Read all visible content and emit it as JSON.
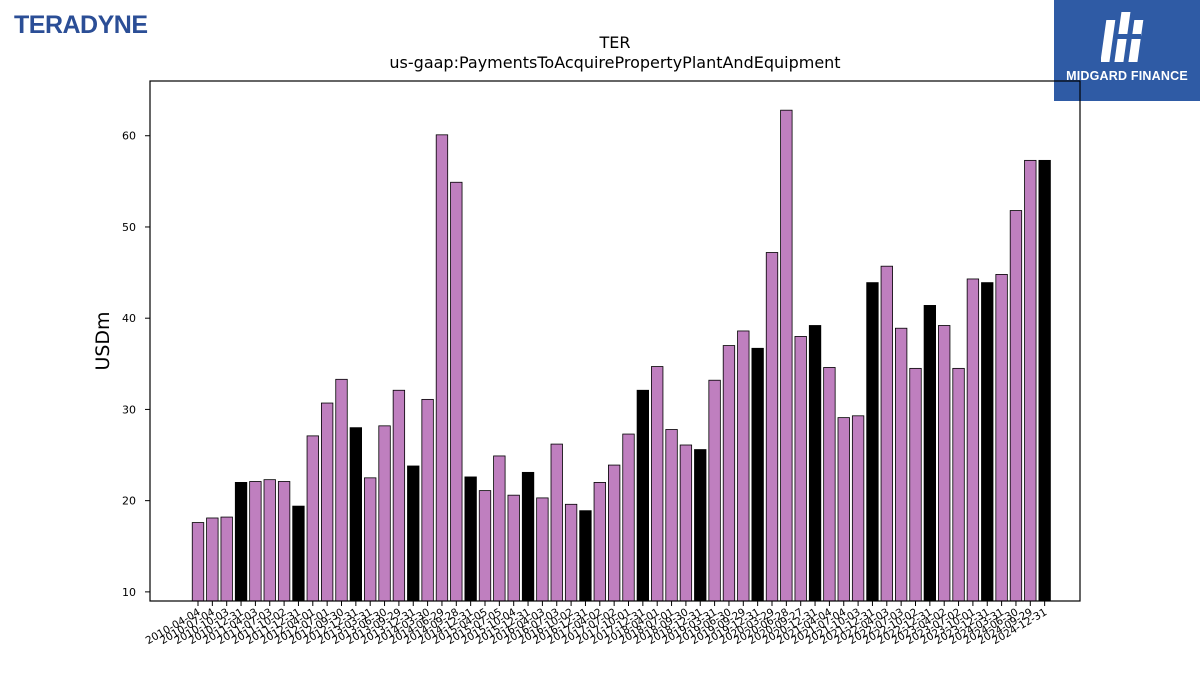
{
  "branding": {
    "left_logo": "TERADYNE",
    "right_logo_text": "MIDGARD FINANCE",
    "right_logo_bg": "#2f5ba5",
    "left_logo_color": "#2b4e96"
  },
  "chart_data": {
    "type": "bar",
    "title": "TER",
    "subtitle": "us-gaap:PaymentsToAcquirePropertyPlantAndEquipment",
    "xlabel": "",
    "ylabel": "USDm",
    "ylim": [
      9,
      66
    ],
    "yticks": [
      10,
      20,
      30,
      40,
      50,
      60
    ],
    "grid": false,
    "colors": {
      "quarter": "#bf7fbf",
      "year_end": "#000000",
      "edge": "#000000"
    },
    "categories": [
      "2010-04-04",
      "2010-07-04",
      "2010-10-03",
      "2010-12-31",
      "2011-04-03",
      "2011-07-03",
      "2011-10-02",
      "2011-12-31",
      "2012-04-01",
      "2012-07-01",
      "2012-09-30",
      "2012-12-31",
      "2013-03-31",
      "2013-06-30",
      "2013-09-29",
      "2013-12-31",
      "2014-03-30",
      "2014-06-29",
      "2014-09-28",
      "2014-12-31",
      "2015-04-05",
      "2015-07-05",
      "2015-10-04",
      "2015-12-31",
      "2016-04-03",
      "2016-07-03",
      "2016-10-02",
      "2016-12-31",
      "2017-04-02",
      "2017-07-02",
      "2017-10-01",
      "2017-12-31",
      "2018-04-01",
      "2018-07-01",
      "2018-09-30",
      "2018-12-31",
      "2019-03-31",
      "2019-06-30",
      "2019-09-29",
      "2019-12-31",
      "2020-03-29",
      "2020-06-28",
      "2020-09-27",
      "2020-12-31",
      "2021-04-04",
      "2021-07-04",
      "2021-10-03",
      "2021-12-31",
      "2022-04-03",
      "2022-07-03",
      "2022-10-02",
      "2022-12-31",
      "2023-04-02",
      "2023-07-02",
      "2023-10-01",
      "2023-12-31",
      "2024-03-31",
      "2024-06-30",
      "2024-09-29",
      "2024-12-31"
    ],
    "values": [
      17.6,
      18.1,
      18.2,
      22.0,
      22.1,
      22.3,
      22.1,
      19.4,
      27.1,
      30.7,
      33.3,
      28.0,
      22.5,
      28.2,
      32.1,
      23.8,
      31.1,
      60.1,
      54.9,
      22.6,
      21.1,
      24.9,
      20.6,
      23.1,
      20.3,
      26.2,
      19.6,
      18.9,
      22.0,
      23.9,
      27.3,
      32.1,
      34.7,
      27.8,
      26.1,
      25.6,
      33.2,
      37.0,
      38.6,
      36.7,
      47.2,
      62.8,
      38.0,
      39.2,
      34.6,
      29.1,
      29.3,
      43.9,
      45.7,
      38.9,
      34.5,
      41.4,
      39.2,
      34.5,
      44.3,
      43.9,
      44.8,
      51.8,
      57.3,
      57.3
    ],
    "year_end_flags": [
      0,
      0,
      0,
      1,
      0,
      0,
      0,
      1,
      0,
      0,
      0,
      1,
      0,
      0,
      0,
      1,
      0,
      0,
      0,
      1,
      0,
      0,
      0,
      1,
      0,
      0,
      0,
      1,
      0,
      0,
      0,
      1,
      0,
      0,
      0,
      1,
      0,
      0,
      0,
      1,
      0,
      0,
      0,
      1,
      0,
      0,
      0,
      1,
      0,
      0,
      0,
      1,
      0,
      0,
      0,
      1,
      0,
      0,
      0,
      1
    ]
  }
}
